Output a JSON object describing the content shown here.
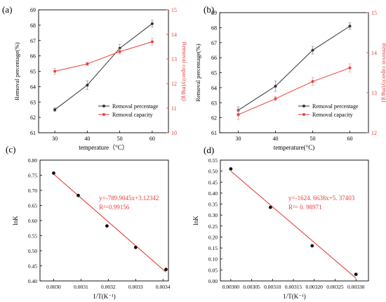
{
  "chart_data": [
    {
      "type": "line",
      "panel_label": "(a)",
      "xlabel": "temperature（°C）",
      "ylabel": "Removal percentage(%)",
      "ylabel_right": "Removal capacity(mg/g)",
      "x": [
        30,
        40,
        50,
        60
      ],
      "xlim": [
        25,
        65
      ],
      "ylim": [
        61,
        69
      ],
      "ylim_right": [
        10,
        15
      ],
      "xticks": [
        "30",
        "40",
        "50",
        "60"
      ],
      "yticks": [
        "61",
        "62",
        "63",
        "64",
        "65",
        "66",
        "67",
        "68",
        "69"
      ],
      "yticks_right": [
        "10",
        "11",
        "12",
        "13",
        "14",
        "15"
      ],
      "legend_position": "bottom-right",
      "series": [
        {
          "name": "Removal percentage",
          "axis": "left",
          "color": "#333333",
          "values": [
            62.5,
            64.1,
            66.5,
            68.1
          ],
          "error": [
            0.12,
            0.28,
            0.25,
            0.22
          ]
        },
        {
          "name": "Removal capacity",
          "axis": "right",
          "color": "#e8403a",
          "values": [
            12.5,
            12.8,
            13.3,
            13.7
          ],
          "error": [
            0.12,
            0.06,
            0.1,
            0.15
          ]
        }
      ]
    },
    {
      "type": "line",
      "panel_label": "(b)",
      "xlabel": "temperature(°C)",
      "ylabel": "Removal percentage(%)",
      "ylabel_right": "Removal capacity(mg/g)",
      "x": [
        30,
        40,
        50,
        60
      ],
      "xlim": [
        25,
        65
      ],
      "ylim": [
        61,
        69
      ],
      "ylim_right": [
        12,
        15
      ],
      "xticks": [
        "30",
        "40",
        "50",
        "60"
      ],
      "yticks": [
        "61",
        "62",
        "63",
        "64",
        "65",
        "66",
        "67",
        "68",
        "69"
      ],
      "yticks_right": [
        "12",
        "13",
        "14",
        "15"
      ],
      "legend_position": "bottom-right",
      "series": [
        {
          "name": "Removal percentage",
          "axis": "left",
          "color": "#333333",
          "values": [
            62.5,
            64.1,
            66.5,
            68.1
          ],
          "error": [
            0.22,
            0.35,
            0.25,
            0.22
          ]
        },
        {
          "name": "Removal capacity",
          "axis": "right",
          "color": "#e8403a",
          "values": [
            12.45,
            12.85,
            13.28,
            13.62
          ],
          "error": [
            0.12,
            0.05,
            0.1,
            0.1
          ]
        }
      ]
    },
    {
      "type": "scatter",
      "panel_label": "(c)",
      "xlabel": "1/T(K⁻¹)",
      "ylabel": "lnK",
      "xlim": [
        0.00295,
        0.00342
      ],
      "ylim": [
        0.4,
        0.8
      ],
      "xticks": [
        "0.0030",
        "0.0031",
        "0.0032",
        "0.0033",
        "0.0034"
      ],
      "yticks": [
        "0.40",
        "0.45",
        "0.50",
        "0.55",
        "0.60",
        "0.65",
        "0.70",
        "0.75",
        "0.80"
      ],
      "points": [
        {
          "x": 0.003,
          "y": 0.757
        },
        {
          "x": 0.00309,
          "y": 0.683
        },
        {
          "x": 0.003195,
          "y": 0.582
        },
        {
          "x": 0.0033,
          "y": 0.511
        },
        {
          "x": 0.003411,
          "y": 0.438
        }
      ],
      "fit": {
        "slope": -789.9045,
        "intercept": 3.12342,
        "color": "#e8403a",
        "x_range": [
          0.003,
          0.003411
        ]
      },
      "annotations": [
        "y=-789.9045x+3.12342",
        "R²=0.99156"
      ]
    },
    {
      "type": "scatter",
      "panel_label": "(d)",
      "xlabel": "1/T(K⁻¹)",
      "ylabel": "lnK",
      "xlim": [
        0.002975,
        0.00333
      ],
      "ylim": [
        0.0,
        0.55
      ],
      "xticks": [
        "0.00300",
        "0.00305",
        "0.00310",
        "0.00315",
        "0.00320",
        "0.00325",
        "0.00330"
      ],
      "yticks": [
        "0.00",
        "0.05",
        "0.10",
        "0.15",
        "0.20",
        "0.25",
        "0.30",
        "0.35",
        "0.40",
        "0.45",
        "0.50",
        "0.55"
      ],
      "points": [
        {
          "x": 0.003,
          "y": 0.51
        },
        {
          "x": 0.003095,
          "y": 0.335
        },
        {
          "x": 0.003195,
          "y": 0.16
        },
        {
          "x": 0.0033,
          "y": 0.03
        }
      ],
      "fit": {
        "slope": -1624.6638,
        "intercept": 5.37403,
        "color": "#e8403a",
        "x_range": [
          0.003,
          0.0033
        ]
      },
      "annotations": [
        "y=-1624. 6638x+5. 37403",
        "R²= 0. 98971"
      ]
    }
  ]
}
